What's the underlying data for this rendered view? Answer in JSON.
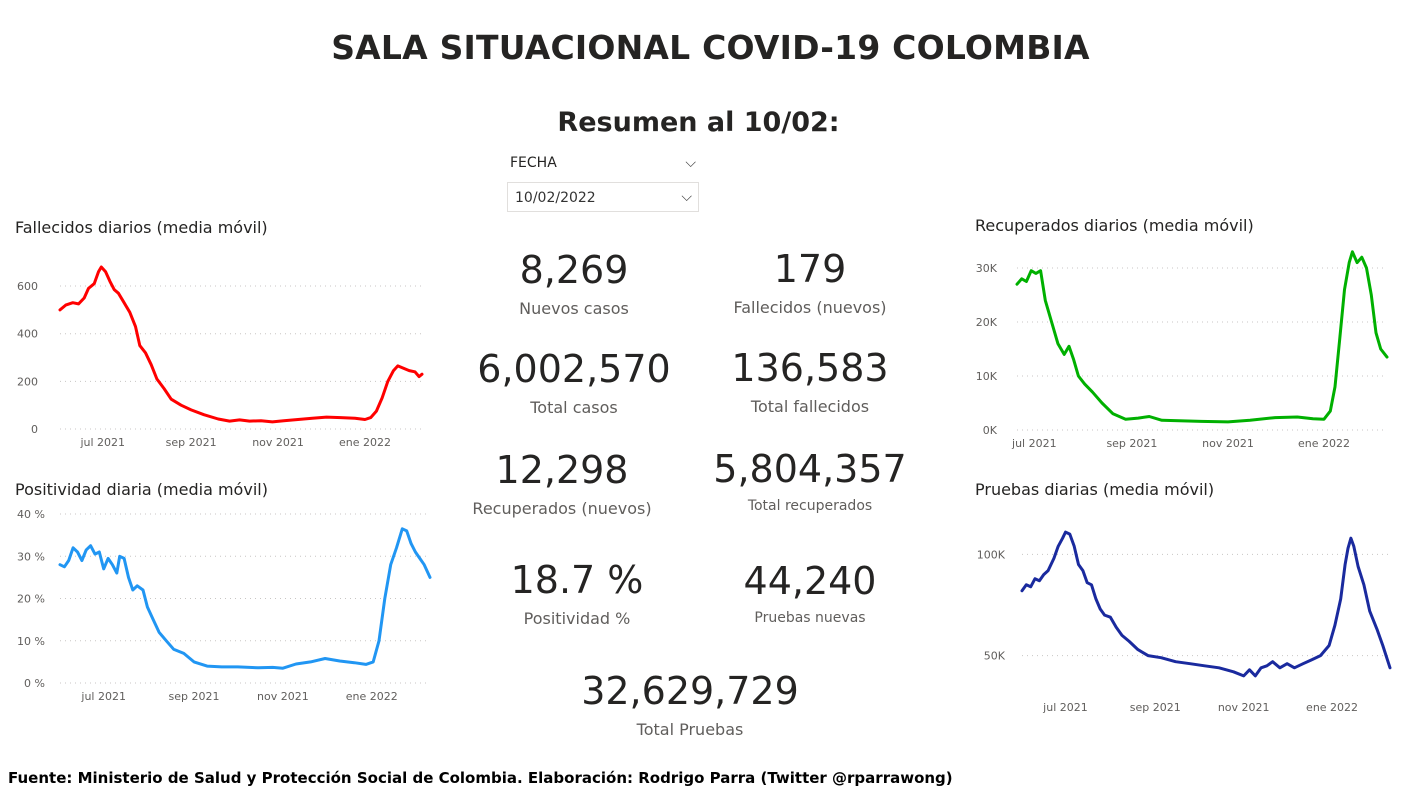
{
  "header": {
    "title": "SALA SITUACIONAL COVID-19 COLOMBIA",
    "subtitle": "Resumen al 10/02:"
  },
  "filter": {
    "label": "FECHA",
    "value": "10/02/2022"
  },
  "kpis": {
    "nuevos_casos": {
      "value": "8,269",
      "label": "Nuevos casos"
    },
    "fallecidos_nuevos": {
      "value": "179",
      "label": "Fallecidos (nuevos)"
    },
    "total_casos": {
      "value": "6,002,570",
      "label": "Total casos"
    },
    "total_fallecidos": {
      "value": "136,583",
      "label": "Total fallecidos"
    },
    "recuperados_nuevos": {
      "value": "12,298",
      "label": "Recuperados (nuevos)"
    },
    "total_recuperados": {
      "value": "5,804,357",
      "label": "Total recuperados"
    },
    "positividad": {
      "value": "18.7 %",
      "label": "Positividad %"
    },
    "pruebas_nuevas": {
      "value": "44,240",
      "label": "Pruebas nuevas"
    },
    "total_pruebas": {
      "value": "32,629,729",
      "label": "Total Pruebas"
    }
  },
  "footer": "Fuente: Ministerio de Salud y Protección Social de Colombia. Elaboración: Rodrigo Parra (Twitter @rparrawong)",
  "chart_data": [
    {
      "id": "fallecidos",
      "type": "line",
      "title": "Fallecidos diarios (media móvil)",
      "color": "#ff0000",
      "x_start": "2021-06-01",
      "x_end": "2022-02-10",
      "xticks": [
        {
          "date": "2021-07-01",
          "label": "jul 2021"
        },
        {
          "date": "2021-09-01",
          "label": "sep 2021"
        },
        {
          "date": "2021-11-01",
          "label": "nov 2021"
        },
        {
          "date": "2022-01-01",
          "label": "ene 2022"
        }
      ],
      "ylim": [
        0,
        680
      ],
      "yticks": [
        {
          "value": 0,
          "label": "0"
        },
        {
          "value": 200,
          "label": "200"
        },
        {
          "value": 400,
          "label": "400"
        },
        {
          "value": 600,
          "label": "600"
        }
      ],
      "points": [
        [
          "2021-06-01",
          500
        ],
        [
          "2021-06-05",
          520
        ],
        [
          "2021-06-10",
          530
        ],
        [
          "2021-06-14",
          525
        ],
        [
          "2021-06-18",
          550
        ],
        [
          "2021-06-21",
          590
        ],
        [
          "2021-06-25",
          610
        ],
        [
          "2021-06-28",
          660
        ],
        [
          "2021-06-30",
          680
        ],
        [
          "2021-07-03",
          660
        ],
        [
          "2021-07-06",
          620
        ],
        [
          "2021-07-09",
          585
        ],
        [
          "2021-07-12",
          570
        ],
        [
          "2021-07-16",
          530
        ],
        [
          "2021-07-20",
          490
        ],
        [
          "2021-07-24",
          430
        ],
        [
          "2021-07-27",
          350
        ],
        [
          "2021-07-31",
          320
        ],
        [
          "2021-08-04",
          270
        ],
        [
          "2021-08-08",
          210
        ],
        [
          "2021-08-13",
          170
        ],
        [
          "2021-08-18",
          125
        ],
        [
          "2021-08-25",
          100
        ],
        [
          "2021-09-01",
          80
        ],
        [
          "2021-09-10",
          60
        ],
        [
          "2021-09-20",
          42
        ],
        [
          "2021-09-28",
          33
        ],
        [
          "2021-10-05",
          38
        ],
        [
          "2021-10-12",
          33
        ],
        [
          "2021-10-20",
          35
        ],
        [
          "2021-10-28",
          30
        ],
        [
          "2021-11-05",
          35
        ],
        [
          "2021-11-15",
          40
        ],
        [
          "2021-11-25",
          45
        ],
        [
          "2021-12-05",
          50
        ],
        [
          "2021-12-15",
          48
        ],
        [
          "2021-12-25",
          45
        ],
        [
          "2022-01-01",
          40
        ],
        [
          "2022-01-05",
          48
        ],
        [
          "2022-01-09",
          75
        ],
        [
          "2022-01-13",
          130
        ],
        [
          "2022-01-17",
          200
        ],
        [
          "2022-01-21",
          245
        ],
        [
          "2022-01-24",
          265
        ],
        [
          "2022-01-28",
          255
        ],
        [
          "2022-02-01",
          245
        ],
        [
          "2022-02-05",
          240
        ],
        [
          "2022-02-08",
          220
        ],
        [
          "2022-02-10",
          230
        ]
      ]
    },
    {
      "id": "positividad",
      "type": "line",
      "title": "Positividad diaria (media móvil)",
      "color": "#2196f3",
      "x_start": "2021-06-01",
      "x_end": "2022-02-10",
      "xticks": [
        {
          "date": "2021-07-01",
          "label": "jul 2021"
        },
        {
          "date": "2021-09-01",
          "label": "sep 2021"
        },
        {
          "date": "2021-11-01",
          "label": "nov 2021"
        },
        {
          "date": "2022-01-01",
          "label": "ene 2022"
        }
      ],
      "ylim": [
        0,
        40
      ],
      "yticks": [
        {
          "value": 0,
          "label": "0 %"
        },
        {
          "value": 10,
          "label": "10 %"
        },
        {
          "value": 20,
          "label": "20 %"
        },
        {
          "value": 30,
          "label": "30 %"
        },
        {
          "value": 40,
          "label": "40 %"
        }
      ],
      "points": [
        [
          "2021-06-01",
          28
        ],
        [
          "2021-06-04",
          27.5
        ],
        [
          "2021-06-07",
          29
        ],
        [
          "2021-06-10",
          32
        ],
        [
          "2021-06-13",
          31
        ],
        [
          "2021-06-16",
          29
        ],
        [
          "2021-06-19",
          31.5
        ],
        [
          "2021-06-22",
          32.5
        ],
        [
          "2021-06-25",
          30.5
        ],
        [
          "2021-06-28",
          31
        ],
        [
          "2021-07-01",
          27
        ],
        [
          "2021-07-04",
          29.5
        ],
        [
          "2021-07-07",
          28
        ],
        [
          "2021-07-10",
          26
        ],
        [
          "2021-07-12",
          30
        ],
        [
          "2021-07-15",
          29.5
        ],
        [
          "2021-07-18",
          25
        ],
        [
          "2021-07-21",
          22
        ],
        [
          "2021-07-24",
          23
        ],
        [
          "2021-07-28",
          22
        ],
        [
          "2021-07-31",
          18
        ],
        [
          "2021-08-04",
          15
        ],
        [
          "2021-08-08",
          12
        ],
        [
          "2021-08-13",
          10
        ],
        [
          "2021-08-18",
          8
        ],
        [
          "2021-08-25",
          7
        ],
        [
          "2021-09-01",
          5
        ],
        [
          "2021-09-10",
          4
        ],
        [
          "2021-09-20",
          3.8
        ],
        [
          "2021-10-01",
          3.8
        ],
        [
          "2021-10-15",
          3.6
        ],
        [
          "2021-10-25",
          3.7
        ],
        [
          "2021-11-01",
          3.5
        ],
        [
          "2021-11-10",
          4.5
        ],
        [
          "2021-11-20",
          5
        ],
        [
          "2021-11-30",
          5.8
        ],
        [
          "2021-12-10",
          5.2
        ],
        [
          "2021-12-20",
          4.8
        ],
        [
          "2021-12-28",
          4.4
        ],
        [
          "2022-01-02",
          5
        ],
        [
          "2022-01-06",
          10
        ],
        [
          "2022-01-10",
          20
        ],
        [
          "2022-01-14",
          28
        ],
        [
          "2022-01-18",
          32
        ],
        [
          "2022-01-22",
          36.5
        ],
        [
          "2022-01-25",
          36
        ],
        [
          "2022-01-28",
          33
        ],
        [
          "2022-01-31",
          31
        ],
        [
          "2022-02-03",
          29.5
        ],
        [
          "2022-02-06",
          28
        ],
        [
          "2022-02-10",
          25
        ]
      ]
    },
    {
      "id": "recuperados",
      "type": "line",
      "title": "Recuperados diarios (media móvil)",
      "color": "#00b000",
      "x_start": "2021-06-20",
      "x_end": "2022-02-10",
      "xticks": [
        {
          "date": "2021-07-01",
          "label": "jul 2021"
        },
        {
          "date": "2021-09-01",
          "label": "sep 2021"
        },
        {
          "date": "2021-11-01",
          "label": "nov 2021"
        },
        {
          "date": "2022-01-01",
          "label": "ene 2022"
        }
      ],
      "ylim": [
        0,
        30000
      ],
      "yticks": [
        {
          "value": 0,
          "label": "0K"
        },
        {
          "value": 10000,
          "label": "10K"
        },
        {
          "value": 20000,
          "label": "20K"
        },
        {
          "value": 30000,
          "label": "30K"
        }
      ],
      "points": [
        [
          "2021-06-20",
          27000
        ],
        [
          "2021-06-23",
          28000
        ],
        [
          "2021-06-26",
          27500
        ],
        [
          "2021-06-29",
          29500
        ],
        [
          "2021-07-02",
          29000
        ],
        [
          "2021-07-05",
          29500
        ],
        [
          "2021-07-08",
          24000
        ],
        [
          "2021-07-12",
          20000
        ],
        [
          "2021-07-16",
          16000
        ],
        [
          "2021-07-20",
          14000
        ],
        [
          "2021-07-23",
          15500
        ],
        [
          "2021-07-26",
          13000
        ],
        [
          "2021-07-29",
          10000
        ],
        [
          "2021-08-02",
          8500
        ],
        [
          "2021-08-07",
          7000
        ],
        [
          "2021-08-13",
          5000
        ],
        [
          "2021-08-20",
          3000
        ],
        [
          "2021-08-28",
          2000
        ],
        [
          "2021-09-05",
          2200
        ],
        [
          "2021-09-12",
          2500
        ],
        [
          "2021-09-20",
          1800
        ],
        [
          "2021-10-01",
          1700
        ],
        [
          "2021-10-15",
          1600
        ],
        [
          "2021-11-01",
          1500
        ],
        [
          "2021-11-15",
          1800
        ],
        [
          "2021-12-01",
          2300
        ],
        [
          "2021-12-15",
          2400
        ],
        [
          "2021-12-25",
          2100
        ],
        [
          "2022-01-01",
          2000
        ],
        [
          "2022-01-05",
          3500
        ],
        [
          "2022-01-08",
          8000
        ],
        [
          "2022-01-11",
          17000
        ],
        [
          "2022-01-14",
          26000
        ],
        [
          "2022-01-17",
          31000
        ],
        [
          "2022-01-19",
          33000
        ],
        [
          "2022-01-22",
          31000
        ],
        [
          "2022-01-25",
          32000
        ],
        [
          "2022-01-28",
          30000
        ],
        [
          "2022-01-31",
          25000
        ],
        [
          "2022-02-03",
          18000
        ],
        [
          "2022-02-06",
          15000
        ],
        [
          "2022-02-10",
          13500
        ]
      ]
    },
    {
      "id": "pruebas",
      "type": "line",
      "title": "Pruebas diarias (media móvil)",
      "color": "#1a2a9e",
      "x_start": "2021-06-01",
      "x_end": "2022-02-10",
      "xticks": [
        {
          "date": "2021-07-01",
          "label": "jul 2021"
        },
        {
          "date": "2021-09-01",
          "label": "sep 2021"
        },
        {
          "date": "2021-11-01",
          "label": "nov 2021"
        },
        {
          "date": "2022-01-01",
          "label": "ene 2022"
        }
      ],
      "ylim": [
        35000,
        115000
      ],
      "yticks": [
        {
          "value": 50000,
          "label": "50K"
        },
        {
          "value": 100000,
          "label": "100K"
        }
      ],
      "points": [
        [
          "2021-06-01",
          82000
        ],
        [
          "2021-06-04",
          85000
        ],
        [
          "2021-06-07",
          84000
        ],
        [
          "2021-06-10",
          88000
        ],
        [
          "2021-06-13",
          87000
        ],
        [
          "2021-06-16",
          90000
        ],
        [
          "2021-06-19",
          92000
        ],
        [
          "2021-06-21",
          95000
        ],
        [
          "2021-06-23",
          98000
        ],
        [
          "2021-06-26",
          104000
        ],
        [
          "2021-06-29",
          108000
        ],
        [
          "2021-07-01",
          111000
        ],
        [
          "2021-07-04",
          110000
        ],
        [
          "2021-07-07",
          104000
        ],
        [
          "2021-07-10",
          95000
        ],
        [
          "2021-07-13",
          92000
        ],
        [
          "2021-07-16",
          86000
        ],
        [
          "2021-07-19",
          85000
        ],
        [
          "2021-07-22",
          78000
        ],
        [
          "2021-07-25",
          73000
        ],
        [
          "2021-07-28",
          70000
        ],
        [
          "2021-08-01",
          69000
        ],
        [
          "2021-08-05",
          64000
        ],
        [
          "2021-08-09",
          60000
        ],
        [
          "2021-08-14",
          57000
        ],
        [
          "2021-08-20",
          53000
        ],
        [
          "2021-08-27",
          50000
        ],
        [
          "2021-09-05",
          49000
        ],
        [
          "2021-09-15",
          47000
        ],
        [
          "2021-09-25",
          46000
        ],
        [
          "2021-10-05",
          45000
        ],
        [
          "2021-10-15",
          44000
        ],
        [
          "2021-10-25",
          42000
        ],
        [
          "2021-11-01",
          40000
        ],
        [
          "2021-11-05",
          43000
        ],
        [
          "2021-11-09",
          40000
        ],
        [
          "2021-11-13",
          44000
        ],
        [
          "2021-11-17",
          45000
        ],
        [
          "2021-11-21",
          47000
        ],
        [
          "2021-11-26",
          44000
        ],
        [
          "2021-12-01",
          46000
        ],
        [
          "2021-12-06",
          44000
        ],
        [
          "2021-12-12",
          46000
        ],
        [
          "2021-12-18",
          48000
        ],
        [
          "2021-12-24",
          50000
        ],
        [
          "2021-12-30",
          55000
        ],
        [
          "2022-01-03",
          65000
        ],
        [
          "2022-01-07",
          78000
        ],
        [
          "2022-01-10",
          95000
        ],
        [
          "2022-01-12",
          103000
        ],
        [
          "2022-01-14",
          108000
        ],
        [
          "2022-01-16",
          104000
        ],
        [
          "2022-01-19",
          94000
        ],
        [
          "2022-01-23",
          85000
        ],
        [
          "2022-01-27",
          72000
        ],
        [
          "2022-02-01",
          63000
        ],
        [
          "2022-02-05",
          55000
        ],
        [
          "2022-02-10",
          44000
        ]
      ]
    }
  ]
}
